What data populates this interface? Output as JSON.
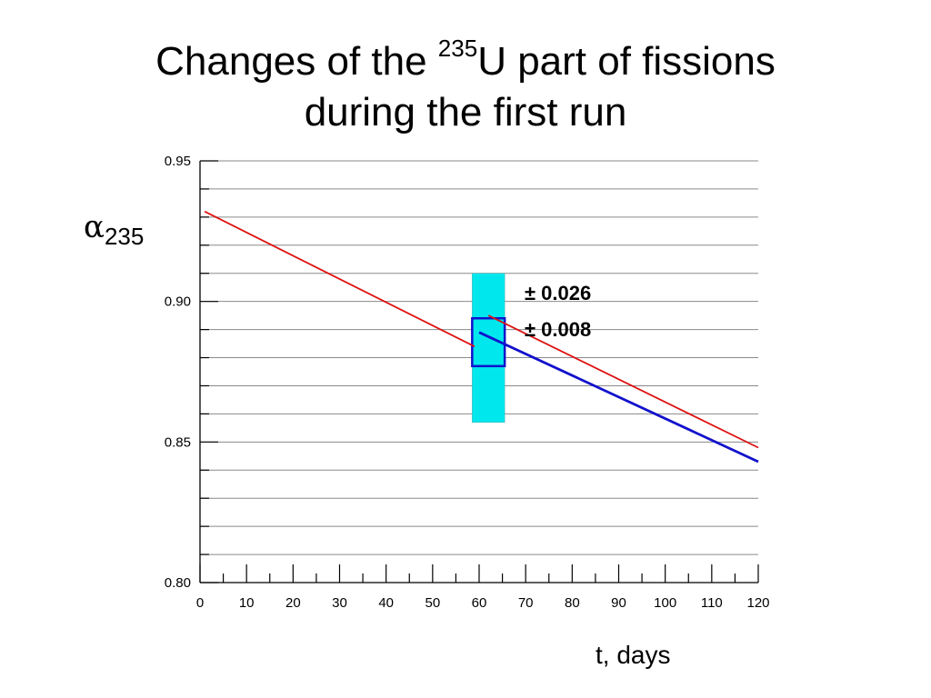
{
  "title": {
    "line1_before": "Changes of the ",
    "line1_sup": "235",
    "line1_after": "U part of fissions",
    "line2": "during the first run"
  },
  "chart_data": {
    "type": "line",
    "ylabel_symbol": "α",
    "ylabel_sub": "235",
    "xlabel": "t, days",
    "xlim": [
      0,
      120
    ],
    "ylim": [
      0.8,
      0.95
    ],
    "x_ticks": [
      0,
      10,
      20,
      30,
      40,
      50,
      60,
      70,
      80,
      90,
      100,
      110,
      120
    ],
    "x_tick_labels": [
      "0",
      "10",
      "20",
      "30",
      "40",
      "50",
      "60",
      "70",
      "80",
      "90",
      "100",
      "110",
      "120"
    ],
    "y_ticks": [
      0.8,
      0.85,
      0.9,
      0.95
    ],
    "y_tick_labels": [
      "0.80",
      "0.85",
      "0.90",
      "0.95"
    ],
    "grid": "horizontal",
    "series": [
      {
        "color": "#dd1111",
        "x": [
          1,
          59
        ],
        "y": [
          0.932,
          0.884
        ]
      },
      {
        "color": "#dd1111",
        "x": [
          62,
          120
        ],
        "y": [
          0.895,
          0.848
        ]
      },
      {
        "color": "#1111cc",
        "x": [
          60,
          120
        ],
        "y": [
          0.889,
          0.843
        ]
      }
    ],
    "bands": [
      {
        "color": "#00e8ee",
        "x": [
          58.5,
          65.5
        ],
        "y": [
          0.857,
          0.91
        ],
        "label": "± 0.026"
      },
      {
        "color": "#1111cc",
        "x": [
          58.5,
          65.5
        ],
        "y": [
          0.877,
          0.894
        ],
        "label": "± 0.008",
        "fill": "none"
      }
    ]
  }
}
